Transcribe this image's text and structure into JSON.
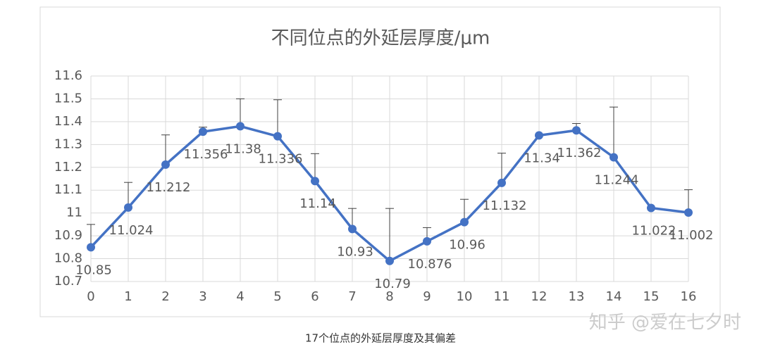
{
  "chart_data": {
    "type": "line",
    "title": "不同位点的外延层厚度/μm",
    "x": [
      0,
      1,
      2,
      3,
      4,
      5,
      6,
      7,
      8,
      9,
      10,
      11,
      12,
      13,
      14,
      15,
      16
    ],
    "series": [
      {
        "color": "#4472c4",
        "values": [
          10.85,
          11.024,
          11.212,
          11.356,
          11.38,
          11.336,
          11.14,
          10.93,
          10.79,
          10.876,
          10.96,
          11.132,
          11.34,
          11.362,
          11.244,
          11.022,
          11.002
        ],
        "errors": [
          0.1,
          0.11,
          0.13,
          0.02,
          0.12,
          0.16,
          0.12,
          0.09,
          0.23,
          0.06,
          0.1,
          0.13,
          0,
          0.03,
          0.22,
          0,
          0.1
        ]
      }
    ],
    "xlim": [
      0,
      16
    ],
    "xticks": [
      0,
      1,
      2,
      3,
      4,
      5,
      6,
      7,
      8,
      9,
      10,
      11,
      12,
      13,
      14,
      15,
      16
    ],
    "ylim": [
      10.7,
      11.6
    ],
    "yticks": [
      10.7,
      10.8,
      10.9,
      11,
      11.1,
      11.2,
      11.3,
      11.4,
      11.5,
      11.6
    ],
    "grid": true,
    "caption": "17个位点的外延层厚度及其偏差",
    "watermark": "知乎 @爱在七夕时"
  }
}
